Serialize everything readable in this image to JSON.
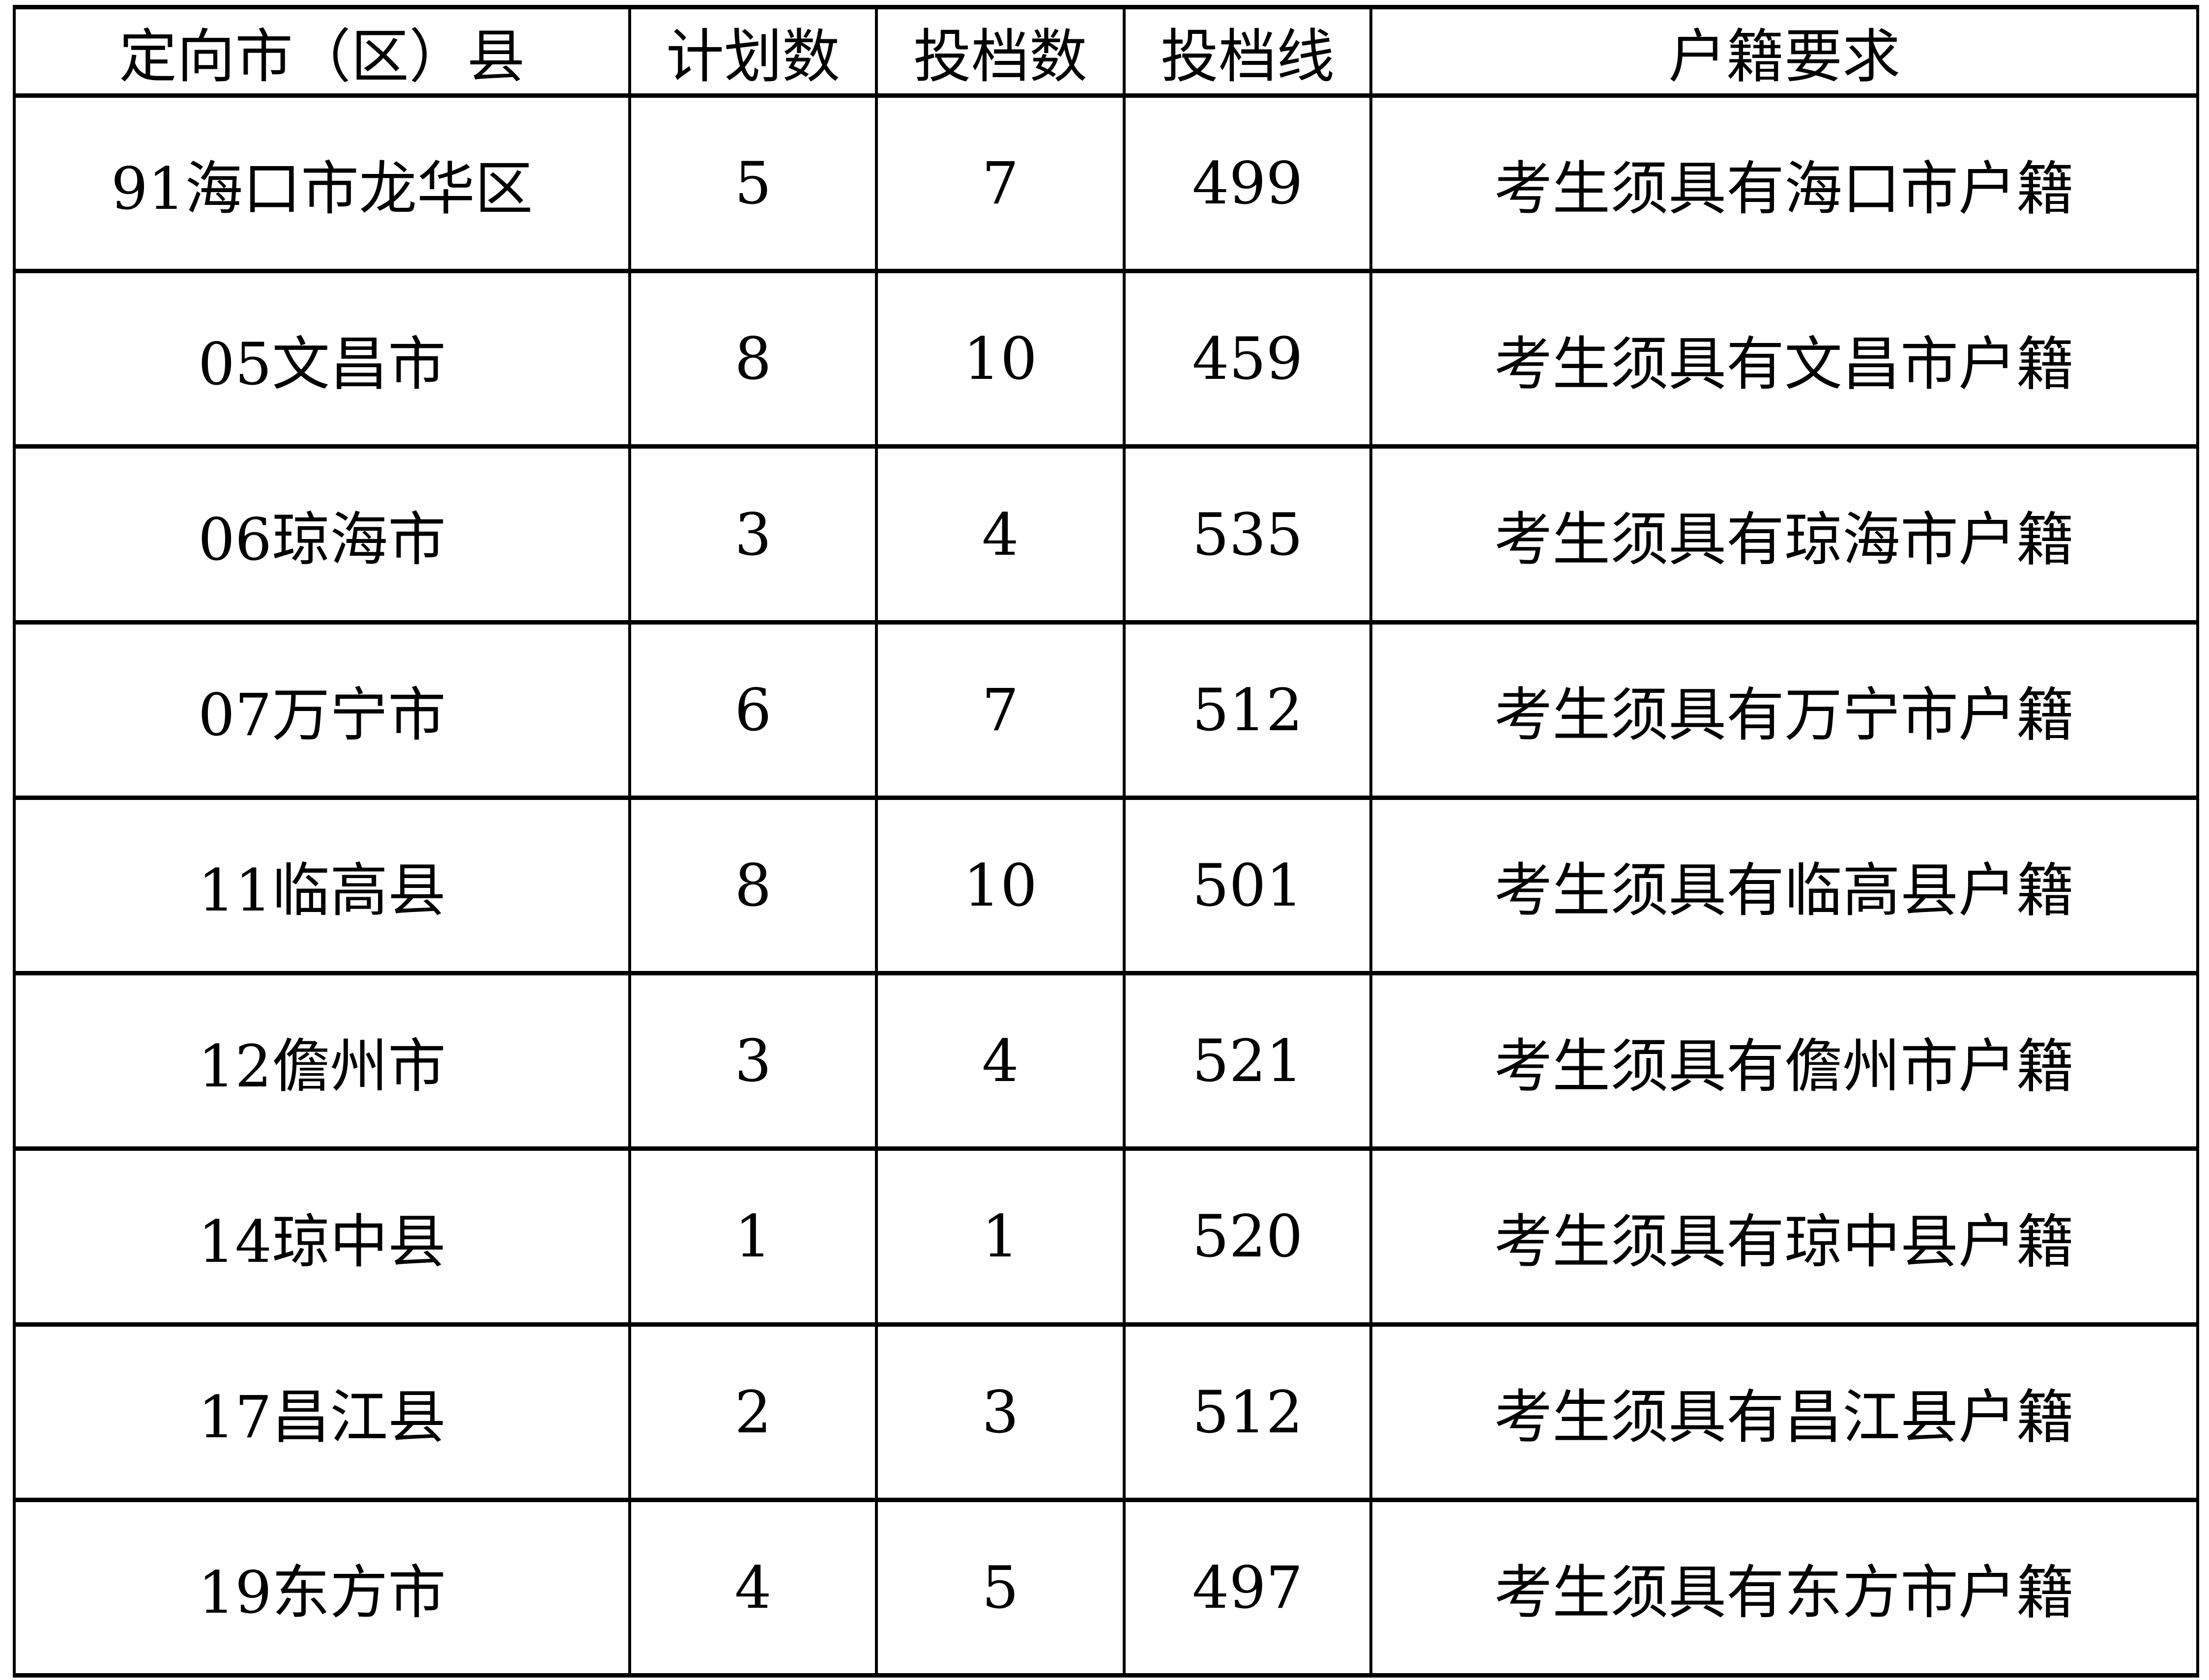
{
  "table": {
    "headers": [
      "定向市（区）县",
      "计划数",
      "投档数",
      "投档线",
      "户籍要求"
    ],
    "rows": [
      [
        "91海口市龙华区",
        "5",
        "7",
        "499",
        "考生须具有海口市户籍"
      ],
      [
        "05文昌市",
        "8",
        "10",
        "459",
        "考生须具有文昌市户籍"
      ],
      [
        "06琼海市",
        "3",
        "4",
        "535",
        "考生须具有琼海市户籍"
      ],
      [
        "07万宁市",
        "6",
        "7",
        "512",
        "考生须具有万宁市户籍"
      ],
      [
        "11临高县",
        "8",
        "10",
        "501",
        "考生须具有临高县户籍"
      ],
      [
        "12儋州市",
        "3",
        "4",
        "521",
        "考生须具有儋州市户籍"
      ],
      [
        "14琼中县",
        "1",
        "1",
        "520",
        "考生须具有琼中县户籍"
      ],
      [
        "17昌江县",
        "2",
        "3",
        "512",
        "考生须具有昌江县户籍"
      ],
      [
        "19东方市",
        "4",
        "5",
        "497",
        "考生须具有东方市户籍"
      ]
    ]
  }
}
